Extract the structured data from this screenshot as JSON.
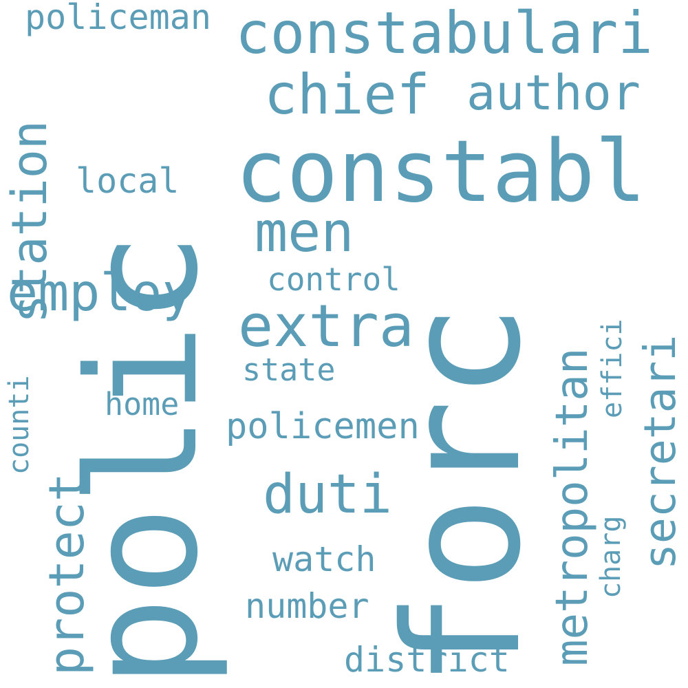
{
  "style": {
    "text_color": "#5b9db7",
    "background": "#ffffff"
  },
  "words": [
    {
      "id": "polic",
      "text": "polic",
      "rotated": true
    },
    {
      "id": "forc",
      "text": "forc",
      "rotated": true
    },
    {
      "id": "constabl",
      "text": "constabl",
      "rotated": false
    },
    {
      "id": "constabulari",
      "text": "constabulari",
      "rotated": false
    },
    {
      "id": "policeman",
      "text": "policeman",
      "rotated": false
    },
    {
      "id": "chief",
      "text": "chief",
      "rotated": false
    },
    {
      "id": "author",
      "text": "author",
      "rotated": false
    },
    {
      "id": "station",
      "text": "station",
      "rotated": true
    },
    {
      "id": "local",
      "text": "local",
      "rotated": false
    },
    {
      "id": "men",
      "text": "men",
      "rotated": false
    },
    {
      "id": "employ",
      "text": "employ",
      "rotated": false
    },
    {
      "id": "control",
      "text": "control",
      "rotated": false
    },
    {
      "id": "extra",
      "text": "extra",
      "rotated": false
    },
    {
      "id": "metropolitan",
      "text": "metropolitan",
      "rotated": true
    },
    {
      "id": "effici",
      "text": "effici",
      "rotated": true
    },
    {
      "id": "secretari",
      "text": "secretari",
      "rotated": true
    },
    {
      "id": "counti",
      "text": "counti",
      "rotated": true
    },
    {
      "id": "state",
      "text": "state",
      "rotated": false
    },
    {
      "id": "home",
      "text": "home",
      "rotated": false
    },
    {
      "id": "policemen",
      "text": "policemen",
      "rotated": false
    },
    {
      "id": "protect",
      "text": "protect",
      "rotated": true
    },
    {
      "id": "duti",
      "text": "duti",
      "rotated": false
    },
    {
      "id": "charg",
      "text": "charg",
      "rotated": true
    },
    {
      "id": "watch",
      "text": "watch",
      "rotated": false
    },
    {
      "id": "number",
      "text": "number",
      "rotated": false
    },
    {
      "id": "district",
      "text": "district",
      "rotated": false
    }
  ]
}
